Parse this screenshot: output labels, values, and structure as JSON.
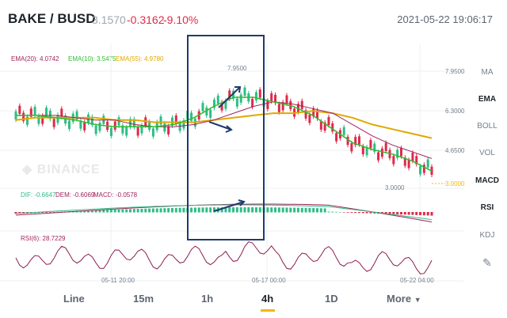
{
  "header": {
    "pair": "BAKE / BUSD",
    "price": "3.1570",
    "change": "-0.3162",
    "change_pct": "-9.10%",
    "datetime": "2021-05-22 19:06:17"
  },
  "ema_legend": {
    "ema20": "EMA(20): 4.0742",
    "ema10": "EMA(10): 3.5475",
    "ema55": "EMA(55): 4.9780"
  },
  "macd_legend": {
    "dif": "DIF: -0.6647",
    "dem": "DEM: -0.6069",
    "macd": "MACD: -0.0578"
  },
  "rsi_legend": {
    "rsi": "RSI(6): 28.7229"
  },
  "price_axis": [
    "7.9500",
    "6.3000",
    "4.6500",
    "3.0000"
  ],
  "current_price_tag": "3.0000",
  "high_label": "7.9500",
  "low_label": "3.0000",
  "time_axis": [
    "05-11 20:00",
    "05-17 00:00",
    "05-22 04:00"
  ],
  "indicators": [
    "MA",
    "EMA",
    "BOLL",
    "VOL",
    "MACD",
    "RSI",
    "KDJ"
  ],
  "active_indicators": [
    "EMA",
    "MACD",
    "RSI"
  ],
  "tabs": [
    "Line",
    "15m",
    "1h",
    "4h",
    "1D",
    "More"
  ],
  "active_tab": "4h",
  "watermark": "BINANCE",
  "colors": {
    "up": "#2ebd85",
    "down": "#e0294a",
    "ema20": "#a0235b",
    "ema10": "#2ebd2e",
    "ema55": "#e0a800",
    "accent": "#f0b90b",
    "annotation": "#1f3a6e"
  },
  "chart_data": {
    "type": "line",
    "series": [
      {
        "name": "EMA(20)",
        "values": [
          6.0,
          6.0,
          6.0,
          5.9,
          5.8,
          5.8,
          5.6,
          5.5,
          5.5,
          5.6,
          5.8,
          6.1,
          6.4,
          6.6,
          6.5,
          6.3,
          6.1,
          5.6,
          5.1,
          4.7,
          4.4,
          4.1
        ]
      },
      {
        "name": "EMA(10)",
        "values": [
          6.0,
          6.0,
          5.9,
          5.8,
          5.6,
          5.5,
          5.5,
          5.5,
          5.6,
          5.9,
          6.4,
          6.8,
          6.8,
          6.6,
          6.4,
          6.0,
          5.4,
          4.8,
          4.5,
          4.3,
          4.0,
          3.55
        ]
      },
      {
        "name": "EMA(55)",
        "values": [
          5.8,
          5.9,
          5.9,
          5.9,
          5.9,
          5.8,
          5.8,
          5.7,
          5.7,
          5.7,
          5.8,
          5.9,
          6.0,
          6.1,
          6.1,
          6.2,
          6.1,
          5.9,
          5.6,
          5.4,
          5.2,
          5.0
        ]
      }
    ],
    "ylim": [
      3.0,
      7.95
    ]
  }
}
